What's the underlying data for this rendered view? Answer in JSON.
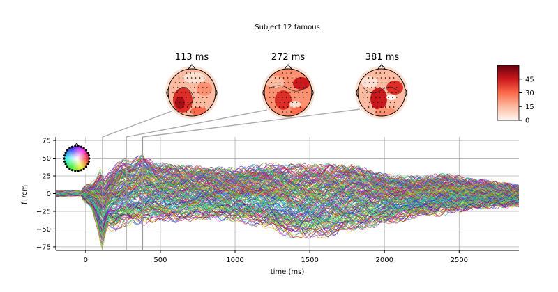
{
  "chart_data": {
    "type": "line",
    "title": "Subject 12 famous",
    "xlabel": "time (ms)",
    "ylabel": "fT/cm",
    "xlim": [
      -200,
      2900
    ],
    "ylim": [
      -80,
      80
    ],
    "xticks": [
      0,
      500,
      1000,
      1500,
      2000,
      2500
    ],
    "yticks": [
      75,
      50,
      25,
      0,
      -25,
      -50,
      -75
    ],
    "grid": true,
    "n_channels": 204,
    "envelope": {
      "time_ms": [
        -200,
        -100,
        -20,
        40,
        80,
        100,
        113,
        130,
        150,
        200,
        250,
        272,
        300,
        381,
        450,
        600,
        800,
        1000,
        1200,
        1400,
        1600,
        1800,
        2000,
        2200,
        2400,
        2600,
        2900
      ],
      "upper_fT": [
        10,
        12,
        8,
        14,
        25,
        36,
        30,
        22,
        28,
        42,
        52,
        50,
        48,
        55,
        45,
        40,
        38,
        36,
        44,
        42,
        42,
        40,
        28,
        24,
        28,
        20,
        12
      ],
      "lower_fT": [
        -12,
        -10,
        -8,
        -20,
        -50,
        -75,
        -80,
        -60,
        -50,
        -55,
        -48,
        -46,
        -44,
        -45,
        -40,
        -40,
        -36,
        -40,
        -50,
        -65,
        -62,
        -52,
        -45,
        -35,
        -30,
        -22,
        -18
      ]
    },
    "topomaps": [
      {
        "time_ms": 113,
        "label": "113 ms"
      },
      {
        "time_ms": 272,
        "label": "272 ms"
      },
      {
        "time_ms": 381,
        "label": "381 ms"
      }
    ],
    "colorbar": {
      "colormap": "Reds",
      "vmin": 0,
      "vmax": 60,
      "ticks": [
        0,
        15,
        30,
        45
      ]
    },
    "sensor_legend": "spatial colors (sensor layout inset, top-left)"
  },
  "colors": {
    "guide_line": "#aaaaaa",
    "grid": "#b0b0b0",
    "reds_low": "#fff5f0",
    "reds_mid": "#fb6a4a",
    "reds_high": "#67000d"
  }
}
